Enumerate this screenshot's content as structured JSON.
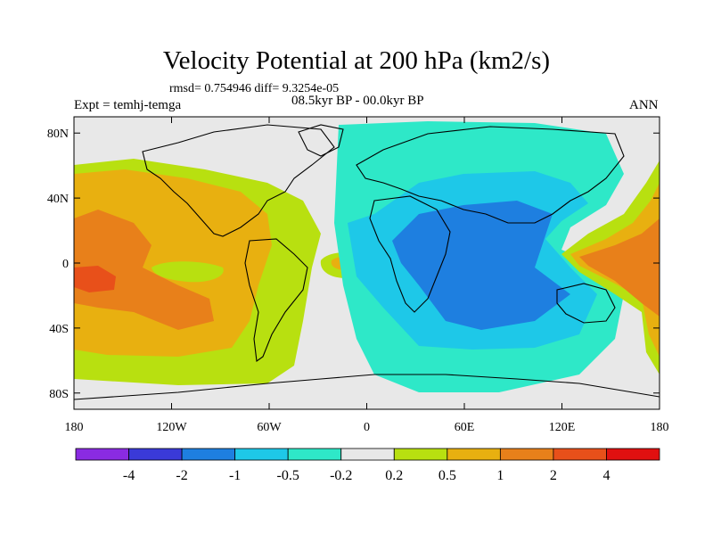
{
  "title": "Velocity Potential at 200 hPa (km2/s)",
  "stats_line": "rmsd= 0.754946 diff= 9.3254e-05",
  "expt_line": "Expt = temhj-temga",
  "period_line": "08.5kyr BP - 00.0kyr BP",
  "season": "ANN",
  "map": {
    "projection": "cylindrical-equidistant",
    "lon_range": [
      -180,
      180
    ],
    "lat_range": [
      -90,
      90
    ],
    "missing_color": "#e8e8e8",
    "coast_color": "#000000"
  },
  "x_ticks": [
    {
      "lon": -180,
      "label": "180"
    },
    {
      "lon": -120,
      "label": "120W"
    },
    {
      "lon": -60,
      "label": "60W"
    },
    {
      "lon": 0,
      "label": "0"
    },
    {
      "lon": 60,
      "label": "60E"
    },
    {
      "lon": 120,
      "label": "120E"
    },
    {
      "lon": 180,
      "label": "180"
    }
  ],
  "y_ticks": [
    {
      "lat": 80,
      "label": "80N"
    },
    {
      "lat": 40,
      "label": "40N"
    },
    {
      "lat": 0,
      "label": "0"
    },
    {
      "lat": -40,
      "label": "40S"
    },
    {
      "lat": -80,
      "label": "80S"
    }
  ],
  "colorbar": {
    "colors": [
      "#8a2be2",
      "#3a3ad8",
      "#1e7fe0",
      "#1ec8e8",
      "#2ee8c8",
      "#e8e8e8",
      "#b8e010",
      "#e8b010",
      "#e8801a",
      "#e8501a",
      "#e01010"
    ],
    "labels": [
      "-4",
      "-2",
      "-1",
      "-0.5",
      "-0.2",
      "0.2",
      "0.5",
      "1",
      "2",
      "4"
    ]
  },
  "field_regions": [
    {
      "level": "positive 0.2-0.5",
      "color": "#b8e010"
    },
    {
      "level": "positive 0.5-1",
      "color": "#e8b010"
    },
    {
      "level": "positive 1-2",
      "color": "#e8801a"
    },
    {
      "level": "positive 2-4",
      "color": "#e8501a"
    },
    {
      "level": "negative -0.2 to -0.5",
      "color": "#2ee8c8"
    },
    {
      "level": "negative -0.5 to -1",
      "color": "#1ec8e8"
    },
    {
      "level": "negative -1 to -2",
      "color": "#1e7fe0"
    }
  ]
}
